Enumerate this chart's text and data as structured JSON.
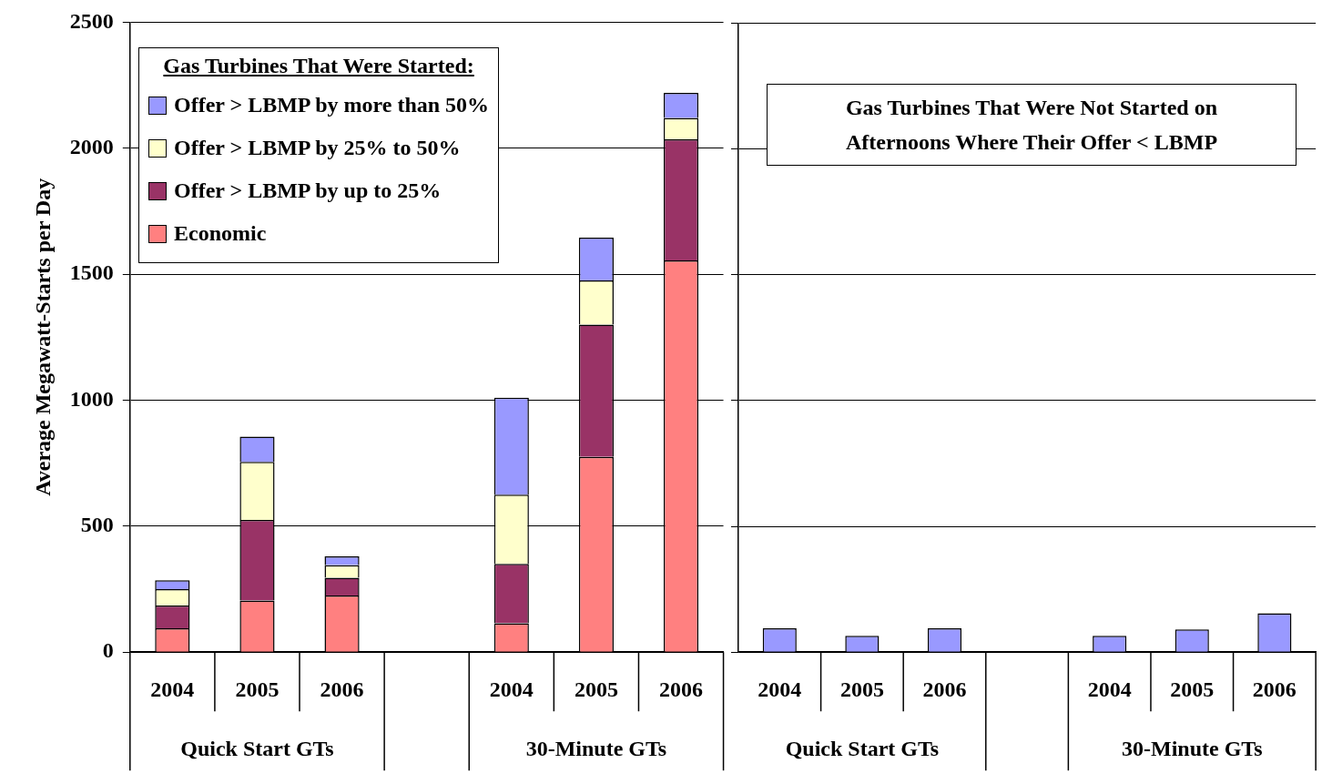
{
  "chart_data": [
    {
      "type": "bar",
      "ylabel": "Average Megawatt-Starts per Day",
      "legend_title": "Gas Turbines That Were Started:",
      "categories": [
        "2004",
        "2005",
        "2006",
        null,
        "2004",
        "2005",
        "2006"
      ],
      "series": [
        {
          "name": "Economic",
          "color": "#ff8080",
          "values": [
            95,
            205,
            225,
            null,
            115,
            775,
            1555
          ]
        },
        {
          "name": "Offer > LBMP by up to 25%",
          "color": "#993366",
          "values": [
            90,
            320,
            70,
            null,
            235,
            525,
            480
          ]
        },
        {
          "name": "Offer > LBMP by 25% to 50%",
          "color": "#ffffcc",
          "values": [
            65,
            230,
            50,
            null,
            275,
            175,
            85
          ]
        },
        {
          "name": "Offer > LBMP by more than 50%",
          "color": "#9999ff",
          "values": [
            35,
            100,
            35,
            null,
            385,
            170,
            100
          ]
        }
      ],
      "stacked": true,
      "ylim": [
        0,
        2500
      ],
      "yticks": [
        0,
        500,
        1000,
        1500,
        2000,
        2500
      ],
      "grid": "y",
      "legend": "top left",
      "annotations": [
        "Quick Start GTs",
        "30-Minute GTs"
      ]
    },
    {
      "type": "bar",
      "title": "Gas Turbines That Were Not Started on Afternoons Where Their Offer < LBMP",
      "categories": [
        "2004",
        "2005",
        "2006",
        null,
        "2004",
        "2005",
        "2006"
      ],
      "series": [
        {
          "color": "#9999ff",
          "values": [
            95,
            65,
            95,
            null,
            65,
            90,
            155
          ]
        }
      ],
      "ylim": [
        0,
        2500
      ],
      "yticks": [
        0,
        500,
        1000,
        1500,
        2000,
        2500
      ],
      "grid": "y",
      "tick_labels": "x",
      "annotations": [
        "Quick Start GTs",
        "30-Minute GTs"
      ]
    }
  ]
}
